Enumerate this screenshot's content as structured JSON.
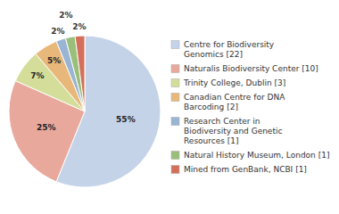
{
  "chart_data": {
    "type": "pie",
    "categories": [
      "Centre for Biodiversity\nGenomics [22]",
      "Naturalis Biodiversity Center [10]",
      "Trinity College, Dublin [3]",
      "Canadian Centre for DNA\nBarcoding [2]",
      "Research Center in\nBiodiversity and Genetic\nResources [1]",
      "Natural History Museum, London [1]",
      "Mined from GenBank, NCBI [1]"
    ],
    "values": [
      55,
      25,
      7,
      5,
      2,
      2,
      2
    ],
    "value_labels": [
      "55%",
      "25%",
      "7%",
      "5%",
      "2%",
      "2%",
      "2%"
    ],
    "colors": [
      "#c5d3e8",
      "#e8a89c",
      "#d4de9a",
      "#e8b87a",
      "#9ab4d4",
      "#9abf7a",
      "#d4705a"
    ],
    "data_labels": true,
    "legend": "right"
  }
}
